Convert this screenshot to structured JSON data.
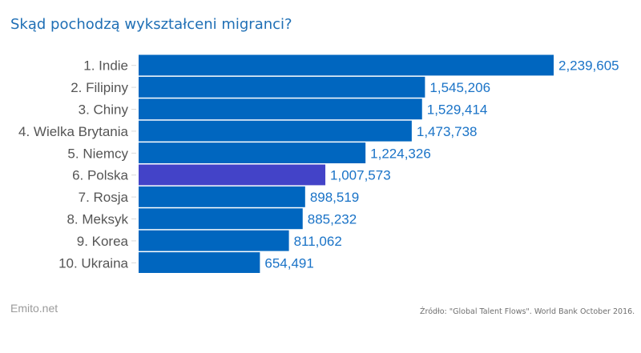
{
  "header": {
    "title": "Skąd pochodzą wykształceni migranci?"
  },
  "footer": {
    "brand": "Emito.net",
    "source": "Źródło: \"Global Talent Flows\". World Bank October 2016."
  },
  "colors": {
    "bar": "#0066bf",
    "highlight": "#4343c8",
    "value_text": "#1a73c7",
    "label_text": "#555555"
  },
  "chart_data": {
    "type": "bar",
    "orientation": "horizontal",
    "title": "Skąd pochodzą wykształceni migranci?",
    "categories": [
      "1. Indie",
      "2. Filipiny",
      "3. Chiny",
      "4. Wielka Brytania",
      "5. Niemcy",
      "6. Polska",
      "7. Rosja",
      "8. Meksyk",
      "9. Korea",
      "10. Ukraina"
    ],
    "values": [
      2239605,
      1545206,
      1529414,
      1473738,
      1224326,
      1007573,
      898519,
      885232,
      811062,
      654491
    ],
    "value_labels": [
      "2,239,605",
      "1,545,206",
      "1,529,414",
      "1,473,738",
      "1,224,326",
      "1,007,573",
      "898,519",
      "885,232",
      "811,062",
      "654,491"
    ],
    "highlight_index": 5,
    "xlabel": "",
    "ylabel": "",
    "xlim": [
      0,
      2239605
    ],
    "grid": false,
    "legend": "none"
  }
}
